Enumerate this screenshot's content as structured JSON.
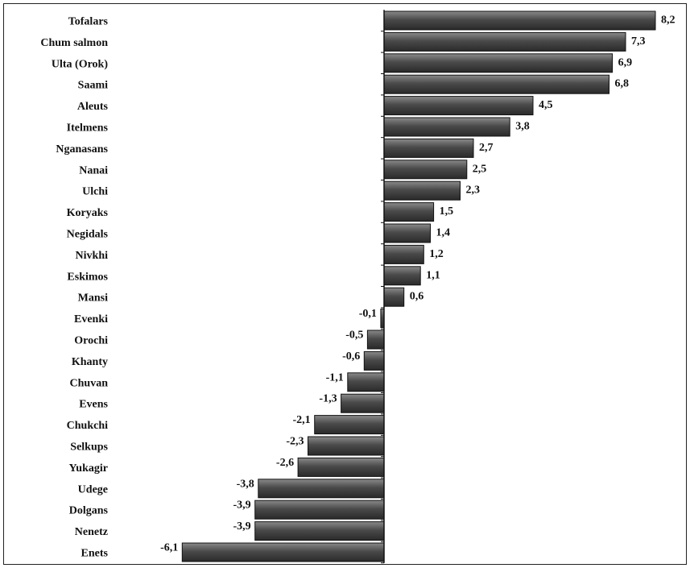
{
  "chart_data": {
    "type": "bar",
    "orientation": "horizontal",
    "title": "",
    "xlabel": "",
    "ylabel": "",
    "xlim": [
      -6.1,
      8.2
    ],
    "grid": false,
    "legend": "none",
    "bar_color": "#4a4a4a",
    "categories": [
      "Tofalars",
      "Chum salmon",
      "Ulta (Orok)",
      "Saami",
      "Aleuts",
      "Itelmens",
      "Nganasans",
      "Nanai",
      "Ulchi",
      "Koryaks",
      "Negidals",
      "Nivkhi",
      "Eskimos",
      "Mansi",
      "Evenki",
      "Orochi",
      "Khanty",
      "Chuvan",
      "Evens",
      "Chukchi",
      "Selkups",
      "Yukagir",
      "Udege",
      "Dolgans",
      "Nenetz",
      "Enets"
    ],
    "values": [
      8.2,
      7.3,
      6.9,
      6.8,
      4.5,
      3.8,
      2.7,
      2.5,
      2.3,
      1.5,
      1.4,
      1.2,
      1.1,
      0.6,
      -0.1,
      -0.5,
      -0.6,
      -1.1,
      -1.3,
      -2.1,
      -2.3,
      -2.6,
      -3.8,
      -3.9,
      -3.9,
      -6.1
    ],
    "value_labels": [
      "8,2",
      "7,3",
      "6,9",
      "6,8",
      "4,5",
      "3,8",
      "2,7",
      "2,5",
      "2,3",
      "1,5",
      "1,4",
      "1,2",
      "1,1",
      "0,6",
      "-0,1",
      "-0,5",
      "-0,6",
      "-1,1",
      "-1,3",
      "-2,1",
      "-2,3",
      "-2,6",
      "-3,8",
      "-3,9",
      "-3,9",
      "-6,1"
    ]
  }
}
